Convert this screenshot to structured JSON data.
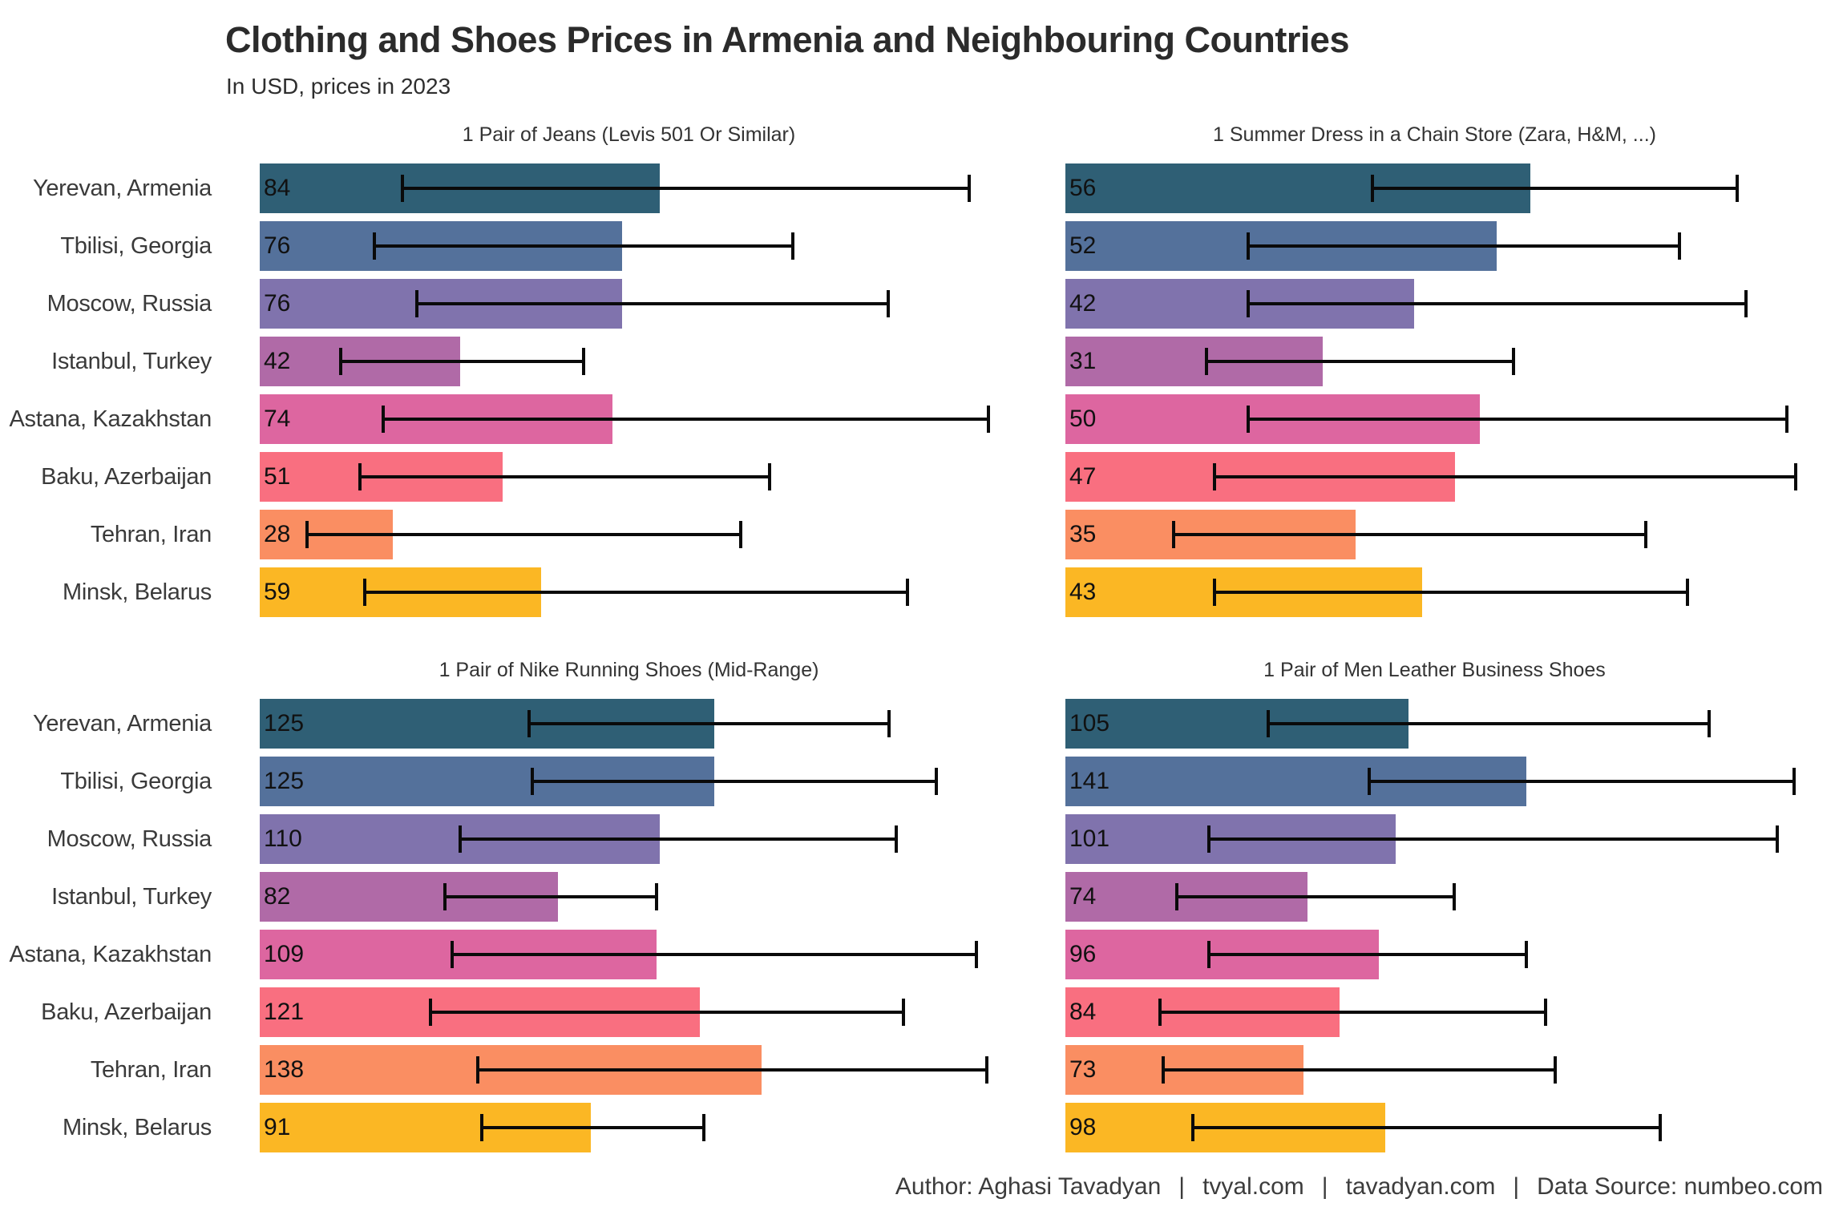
{
  "page": {
    "title": "Clothing and Shoes Prices in Armenia and Neighbouring Countries",
    "subtitle": "In USD, prices in 2023",
    "background": "#ffffff"
  },
  "cities": [
    "Yerevan, Armenia",
    "Tbilisi, Georgia",
    "Moscow, Russia",
    "Istanbul, Turkey",
    "Astana, Kazakhstan",
    "Baku, Azerbaijan",
    "Tehran, Iran",
    "Minsk, Belarus"
  ],
  "colors": {
    "bar_palette": [
      "#2F5F75",
      "#54719B",
      "#8073AD",
      "#B06AA7",
      "#DD66A0",
      "#F96F80",
      "#FA8E62",
      "#FBB724"
    ],
    "error_bar": "#0a0a0a",
    "title_text": "#2b2b2b",
    "axis_text": "#3a3a3a",
    "value_text": "#111111",
    "footer_text": "#3c3c3c"
  },
  "chart_data": [
    {
      "type": "bar",
      "orientation": "horizontal",
      "title": "1 Pair of Jeans (Levis 501 Or Similar)",
      "categories": [
        "Yerevan, Armenia",
        "Tbilisi, Georgia",
        "Moscow, Russia",
        "Istanbul, Turkey",
        "Astana, Kazakhstan",
        "Baku, Azerbaijan",
        "Tehran, Iran",
        "Minsk, Belarus"
      ],
      "values": [
        84,
        76,
        76,
        42,
        74,
        51,
        28,
        59
      ],
      "error_low": [
        30,
        24,
        33,
        17,
        26,
        21,
        10,
        22
      ],
      "error_high": [
        149,
        112,
        132,
        68,
        153,
        107,
        101,
        136
      ],
      "xlim": [
        0,
        155
      ],
      "grid": false,
      "show_y_labels": true
    },
    {
      "type": "bar",
      "orientation": "horizontal",
      "title": "1 Summer Dress in a Chain Store (Zara, H&M, ...)",
      "categories": [
        "Yerevan, Armenia",
        "Tbilisi, Georgia",
        "Moscow, Russia",
        "Istanbul, Turkey",
        "Astana, Kazakhstan",
        "Baku, Azerbaijan",
        "Tehran, Iran",
        "Minsk, Belarus"
      ],
      "values": [
        56,
        52,
        42,
        31,
        50,
        47,
        35,
        43
      ],
      "error_low": [
        37,
        22,
        22,
        17,
        22,
        18,
        13,
        18
      ],
      "error_high": [
        81,
        74,
        82,
        54,
        87,
        88,
        70,
        75
      ],
      "xlim": [
        0,
        89
      ],
      "grid": false,
      "show_y_labels": false
    },
    {
      "type": "bar",
      "orientation": "horizontal",
      "title": "1 Pair of Nike Running Shoes (Mid-Range)",
      "categories": [
        "Yerevan, Armenia",
        "Tbilisi, Georgia",
        "Moscow, Russia",
        "Istanbul, Turkey",
        "Astana, Kazakhstan",
        "Baku, Azerbaijan",
        "Tehran, Iran",
        "Minsk, Belarus"
      ],
      "values": [
        125,
        125,
        110,
        82,
        109,
        121,
        138,
        91
      ],
      "error_low": [
        74,
        75,
        55,
        51,
        53,
        47,
        60,
        61
      ],
      "error_high": [
        173,
        186,
        175,
        109,
        197,
        177,
        200,
        122
      ],
      "xlim": [
        0,
        203
      ],
      "grid": false,
      "show_y_labels": true
    },
    {
      "type": "bar",
      "orientation": "horizontal",
      "title": "1 Pair of Men Leather Business Shoes",
      "categories": [
        "Yerevan, Armenia",
        "Tbilisi, Georgia",
        "Moscow, Russia",
        "Istanbul, Turkey",
        "Astana, Kazakhstan",
        "Baku, Azerbaijan",
        "Tehran, Iran",
        "Minsk, Belarus"
      ],
      "values": [
        105,
        141,
        101,
        74,
        96,
        84,
        73,
        98
      ],
      "error_low": [
        62,
        93,
        44,
        34,
        44,
        29,
        30,
        39
      ],
      "error_high": [
        197,
        223,
        218,
        119,
        141,
        147,
        150,
        182
      ],
      "xlim": [
        0,
        226
      ],
      "grid": false,
      "show_y_labels": false
    }
  ],
  "footer": {
    "separator": "|",
    "segments": [
      "Author: Aghasi Tavadyan",
      "tvyal.com",
      "tavadyan.com",
      "Data Source: numbeo.com"
    ]
  }
}
